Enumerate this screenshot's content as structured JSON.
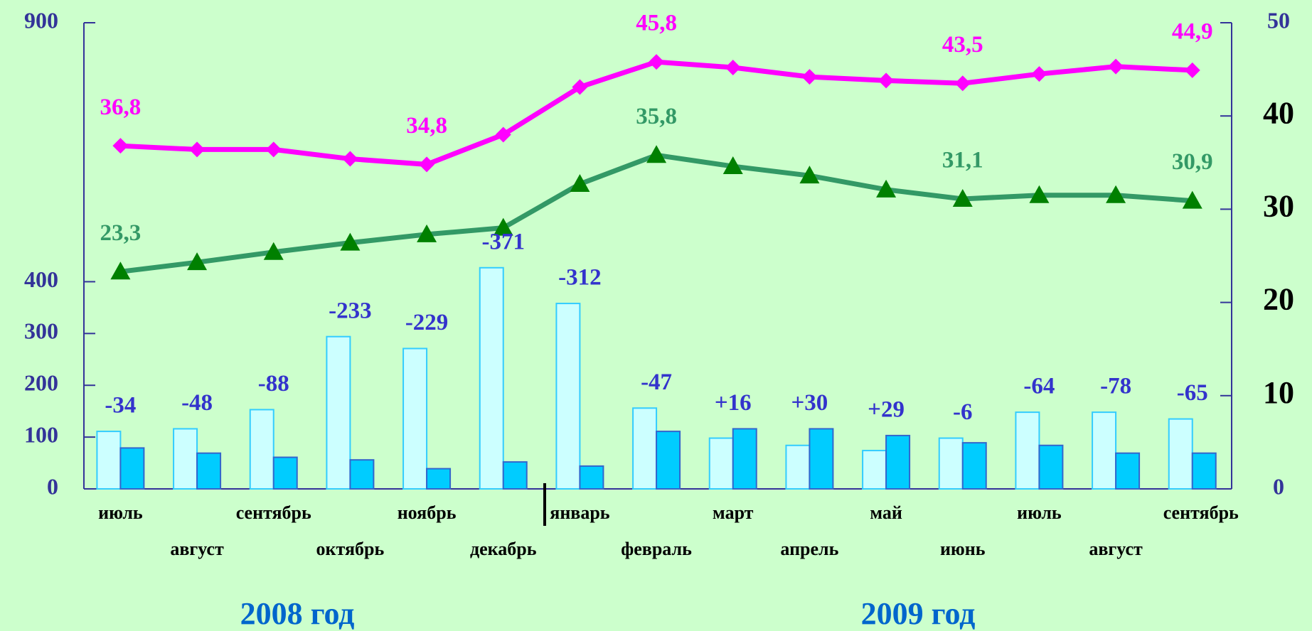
{
  "chart_data": {
    "type": "bar_line",
    "categories": [
      "июль",
      "август",
      "сентябрь",
      "октябрь",
      "ноябрь",
      "декабрь",
      "январь",
      "февраль",
      "март",
      "апрель",
      "май",
      "июнь",
      "июль",
      "август",
      "сентябрь"
    ],
    "year_labels": [
      "2008 год",
      "2009 год"
    ],
    "series": [
      {
        "type": "bar",
        "color": "#ccffff",
        "stroke": "#33ccff",
        "values": [
          111,
          116,
          153,
          294,
          271,
          427,
          358,
          156,
          98,
          84,
          74,
          98,
          148,
          148,
          135
        ]
      },
      {
        "type": "bar",
        "color": "#00ccff",
        "stroke": "#3366cc",
        "values": [
          79,
          69,
          61,
          56,
          39,
          52,
          44,
          111,
          116,
          116,
          103,
          89,
          84,
          69,
          69
        ]
      },
      {
        "type": "line",
        "axis": "y2",
        "color": "#ff00ff",
        "marker": "diamond",
        "values": [
          36.8,
          36.4,
          36.4,
          35.4,
          34.8,
          38.0,
          43.1,
          45.8,
          45.2,
          44.2,
          43.8,
          43.5,
          44.5,
          45.3,
          44.9
        ],
        "value_labels": [
          "36,8",
          null,
          null,
          null,
          "34,8",
          null,
          null,
          "45,8",
          null,
          null,
          null,
          "43,5",
          null,
          null,
          "44,9"
        ]
      },
      {
        "type": "line",
        "axis": "y2",
        "color": "#339966",
        "marker_color": "#008000",
        "marker": "triangle",
        "values": [
          23.3,
          24.3,
          25.4,
          26.4,
          27.3,
          28.0,
          32.7,
          35.8,
          34.6,
          33.6,
          32.1,
          31.1,
          31.5,
          31.5,
          30.9
        ],
        "value_labels": [
          "23,3",
          null,
          null,
          null,
          null,
          null,
          null,
          "35,8",
          null,
          null,
          null,
          "31,1",
          null,
          null,
          "30,9"
        ]
      }
    ],
    "bar_labels": [
      "-34",
      "-48",
      "-88",
      "-233",
      "-229",
      "-371",
      "-312",
      "-47",
      "+16",
      "+30",
      "+29",
      "-6",
      "-64",
      "-78",
      "-65"
    ],
    "ylim": [
      0,
      900
    ],
    "yticks": [
      0,
      100,
      200,
      300,
      400,
      900
    ],
    "y2lim": [
      0,
      50
    ],
    "y2ticks": [
      0,
      10,
      20,
      30,
      40,
      50
    ]
  }
}
